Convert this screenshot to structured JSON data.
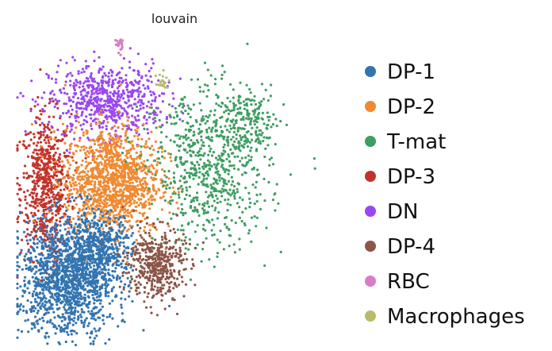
{
  "chart_data": {
    "type": "scatter",
    "title": "louvain",
    "xlabel": "",
    "ylabel": "",
    "grid": false,
    "axes_visible": false,
    "legend_placement": "right",
    "series": [
      {
        "name": "DP-1",
        "color": "#3274b0",
        "clusters": [
          {
            "cx": 0.16,
            "cy": 0.21,
            "sx": 0.075,
            "sy": 0.1,
            "n": 1400
          },
          {
            "cx": 0.26,
            "cy": 0.31,
            "sx": 0.05,
            "sy": 0.06,
            "n": 450
          }
        ]
      },
      {
        "name": "DP-2",
        "color": "#ef8a32",
        "clusters": [
          {
            "cx": 0.3,
            "cy": 0.54,
            "sx": 0.075,
            "sy": 0.09,
            "n": 1300
          }
        ]
      },
      {
        "name": "T-mat",
        "color": "#3f9e62",
        "clusters": [
          {
            "cx": 0.62,
            "cy": 0.57,
            "sx": 0.09,
            "sy": 0.13,
            "n": 650
          },
          {
            "cx": 0.73,
            "cy": 0.74,
            "sx": 0.05,
            "sy": 0.05,
            "n": 180
          },
          {
            "cx": 0.52,
            "cy": 0.7,
            "sx": 0.06,
            "sy": 0.07,
            "n": 60
          }
        ]
      },
      {
        "name": "DP-3",
        "color": "#c2332b",
        "clusters": [
          {
            "cx": 0.09,
            "cy": 0.52,
            "sx": 0.04,
            "sy": 0.12,
            "n": 650
          }
        ]
      },
      {
        "name": "DN",
        "color": "#9a47ef",
        "clusters": [
          {
            "cx": 0.28,
            "cy": 0.81,
            "sx": 0.09,
            "sy": 0.06,
            "n": 650
          }
        ]
      },
      {
        "name": "DP-4",
        "color": "#8b5648",
        "clusters": [
          {
            "cx": 0.44,
            "cy": 0.26,
            "sx": 0.045,
            "sy": 0.06,
            "n": 450
          }
        ]
      },
      {
        "name": "RBC",
        "color": "#d97cc5",
        "clusters": [
          {
            "cx": 0.32,
            "cy": 1.02,
            "sx": 0.008,
            "sy": 0.025,
            "n": 45
          }
        ]
      },
      {
        "name": "Macrophages",
        "color": "#b9ba6d",
        "clusters": [
          {
            "cx": 0.46,
            "cy": 0.87,
            "sx": 0.012,
            "sy": 0.018,
            "n": 22
          }
        ]
      }
    ]
  }
}
